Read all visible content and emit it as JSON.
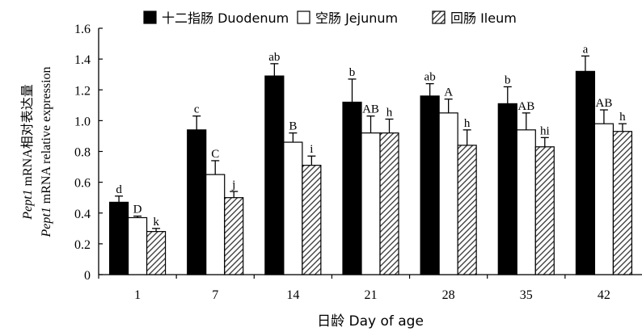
{
  "chart_data": {
    "type": "bar",
    "categories": [
      "1",
      "7",
      "14",
      "21",
      "28",
      "35",
      "42"
    ],
    "ylim": [
      0,
      1.6
    ],
    "yticks": [
      "0",
      "0.2",
      "0.4",
      "0.6",
      "0.8",
      "1.0",
      "1.2",
      "1.4",
      "1.6"
    ],
    "xlabel": "日龄 Day of age",
    "ylabel": {
      "line1_gene": "Pept1",
      "line1_rest": " mRNA相对表达量",
      "line2_gene": "Pept1",
      "line2_rest": " mRNA relative expression"
    },
    "legend_position": "top",
    "grid": false,
    "series": [
      {
        "name": "十二指肠  Duodenum",
        "color": "#000000",
        "pattern": "solid",
        "values": [
          0.47,
          0.94,
          1.29,
          1.12,
          1.16,
          1.11,
          1.32
        ],
        "errors": [
          0.04,
          0.09,
          0.08,
          0.15,
          0.08,
          0.11,
          0.1
        ],
        "letters": [
          "d",
          "c",
          "ab",
          "b",
          "ab",
          "b",
          "a"
        ]
      },
      {
        "name": "空肠  Jejunum",
        "color": "#ffffff",
        "pattern": "open",
        "values": [
          0.37,
          0.65,
          0.86,
          0.92,
          1.05,
          0.94,
          0.98
        ],
        "errors": [
          0.01,
          0.09,
          0.06,
          0.11,
          0.09,
          0.11,
          0.09
        ],
        "letters": [
          "D",
          "C",
          "B",
          "AB",
          "A",
          "AB",
          "AB"
        ]
      },
      {
        "name": "回肠  Ileum",
        "color": "#555555",
        "pattern": "hatch",
        "values": [
          0.28,
          0.5,
          0.71,
          0.92,
          0.84,
          0.83,
          0.93
        ],
        "errors": [
          0.02,
          0.04,
          0.06,
          0.09,
          0.1,
          0.06,
          0.05
        ],
        "letters": [
          "k",
          "j",
          "i",
          "h",
          "h",
          "hi",
          "h"
        ]
      }
    ]
  }
}
